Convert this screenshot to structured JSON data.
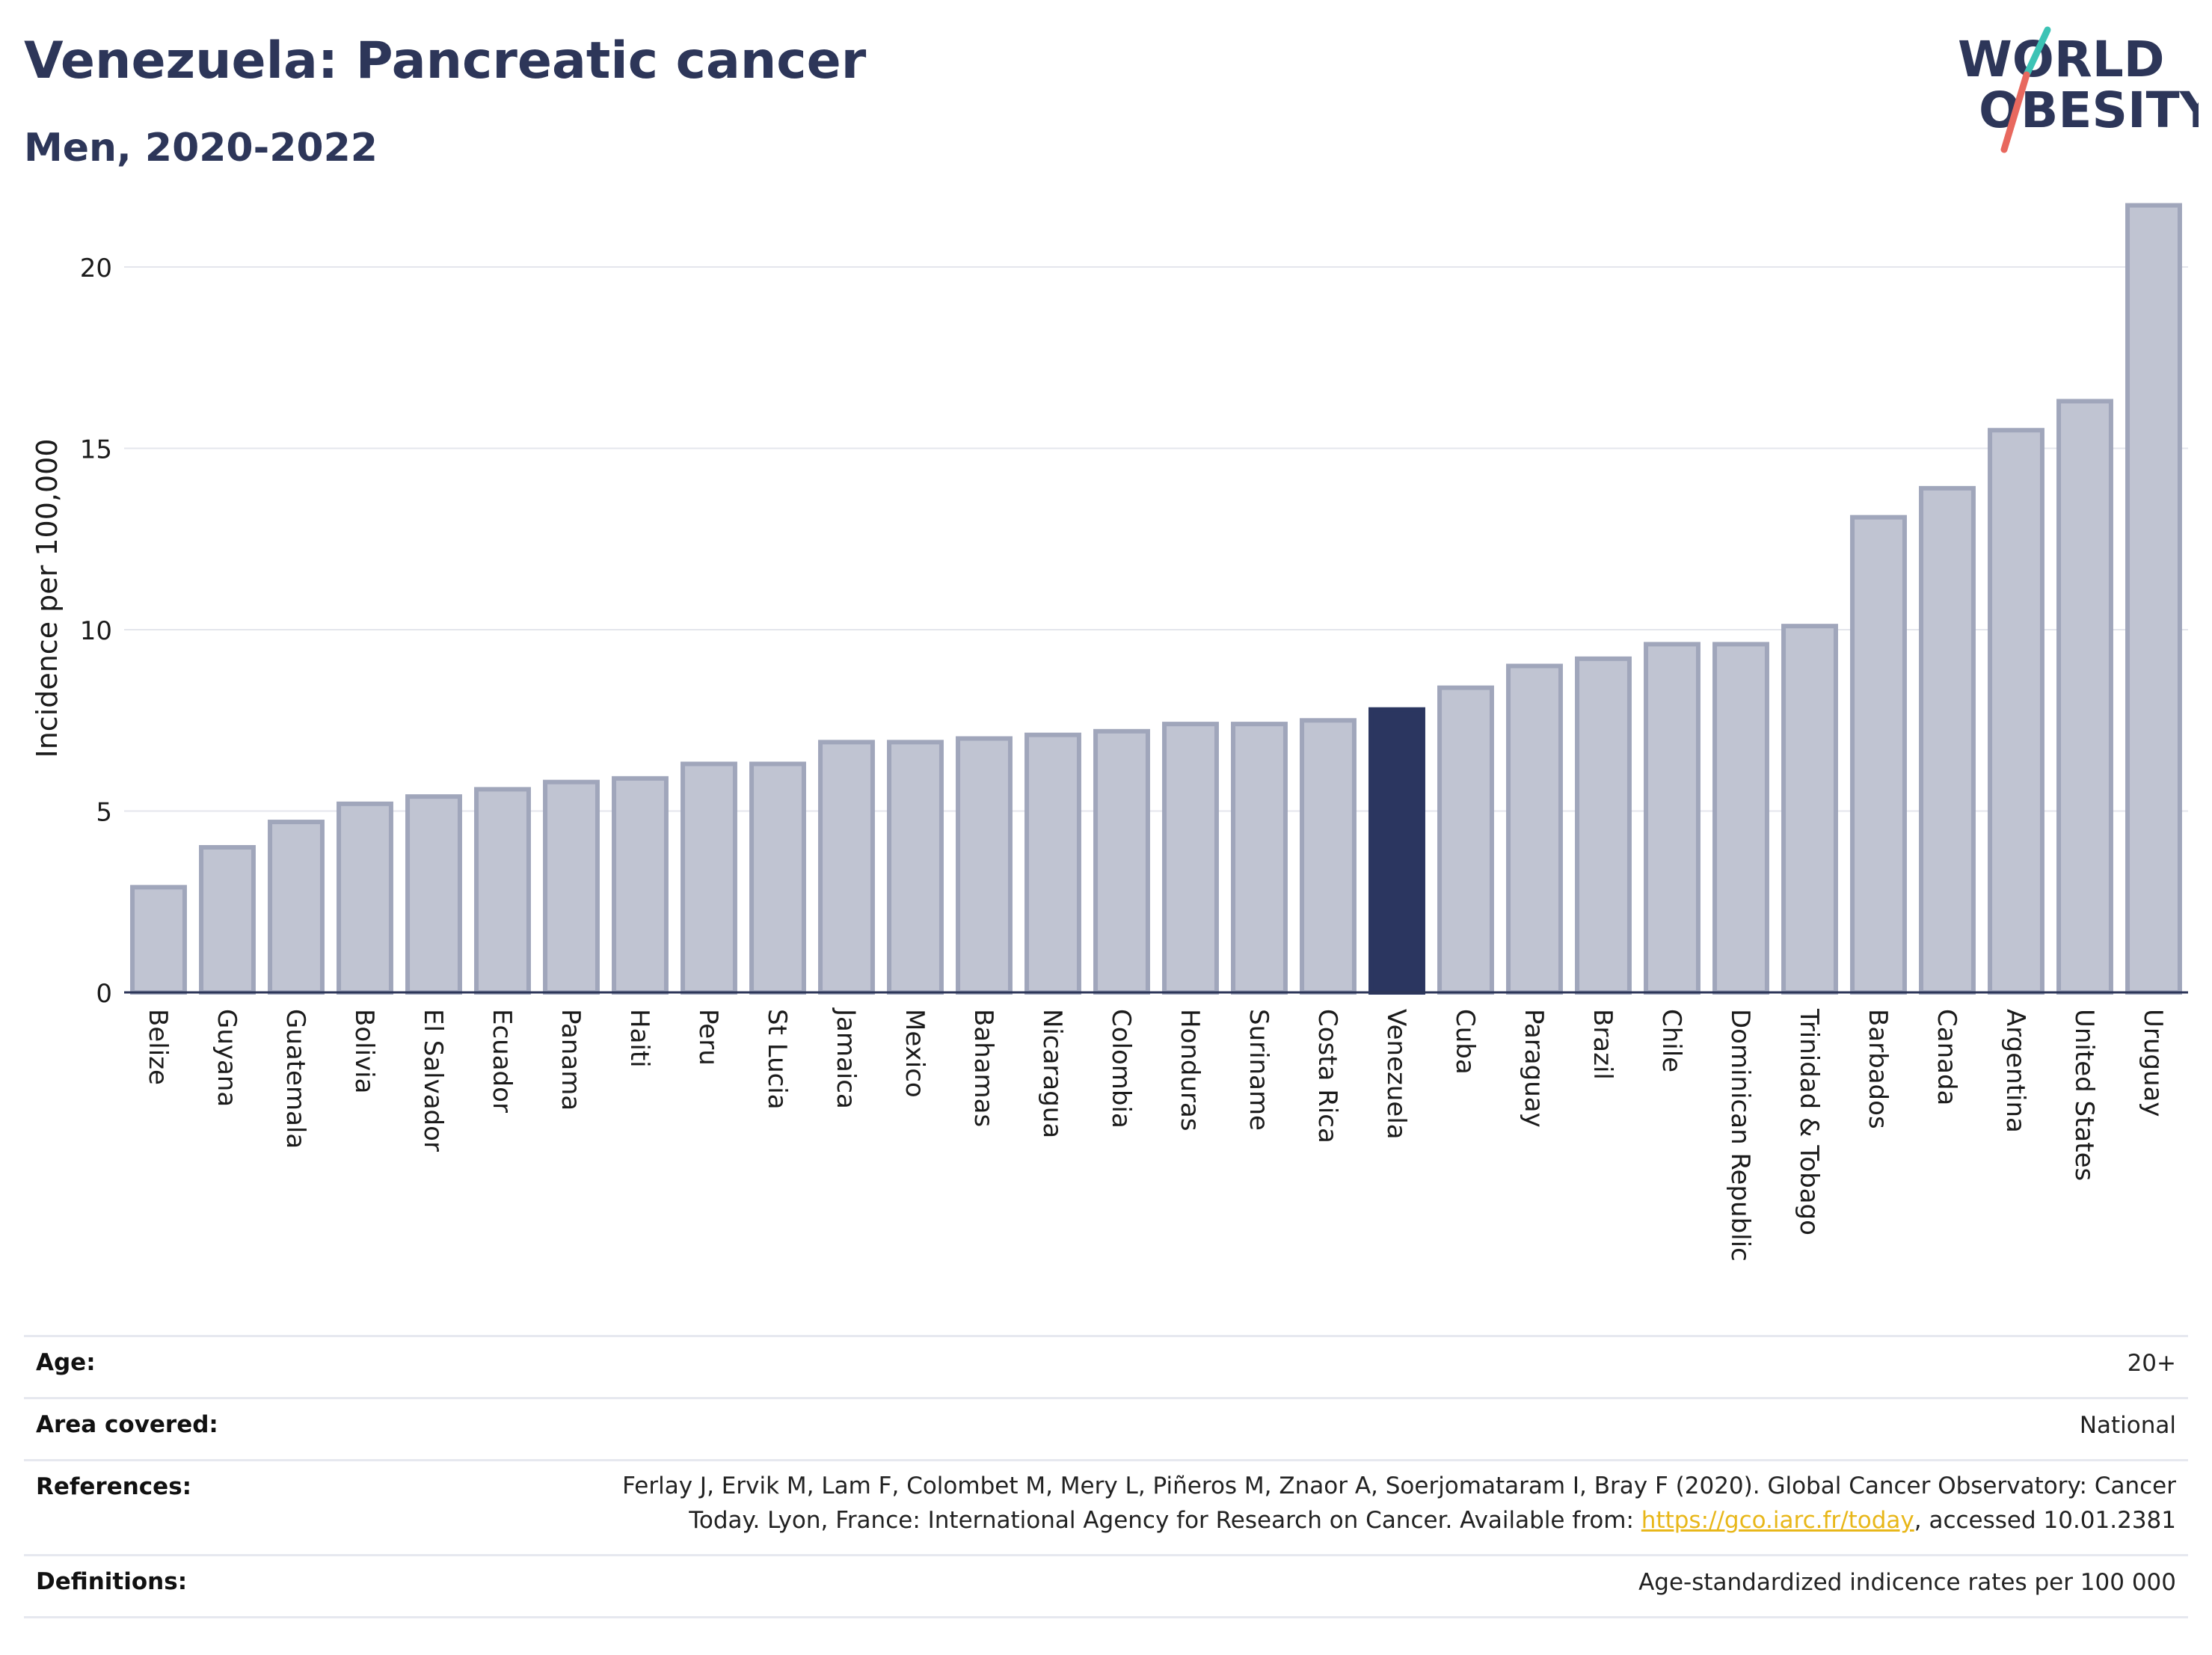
{
  "header": {
    "title": "Venezuela: Pancreatic cancer",
    "subtitle": "Men, 2020-2022"
  },
  "logo": {
    "line1": "WORLD",
    "line2": "OBESITY",
    "slash_colors": [
      "#3cc3b5",
      "#e8685e"
    ]
  },
  "colors": {
    "bar": "#c0c4d2",
    "bar_border": "#a0a6bb",
    "highlight": "#2b3660",
    "text_dark": "#2d3659",
    "link": "#e8b71a"
  },
  "chart_data": {
    "type": "bar",
    "ylabel": "Incidence per 100,000",
    "ylim": [
      0,
      22
    ],
    "yticks": [
      0,
      5,
      10,
      15,
      20
    ],
    "grid": true,
    "highlight": "Venezuela",
    "categories": [
      "Belize",
      "Guyana",
      "Guatemala",
      "Bolivia",
      "El Salvador",
      "Ecuador",
      "Panama",
      "Haiti",
      "Peru",
      "St Lucia",
      "Jamaica",
      "Mexico",
      "Bahamas",
      "Nicaragua",
      "Colombia",
      "Honduras",
      "Suriname",
      "Costa Rica",
      "Venezuela",
      "Cuba",
      "Paraguay",
      "Brazil",
      "Chile",
      "Dominican Republic",
      "Trinidad & Tobago",
      "Barbados",
      "Canada",
      "Argentina",
      "United States",
      "Uruguay"
    ],
    "values": [
      2.9,
      4.0,
      4.7,
      5.2,
      5.4,
      5.6,
      5.8,
      5.9,
      6.3,
      6.3,
      6.9,
      6.9,
      7.0,
      7.1,
      7.2,
      7.4,
      7.4,
      7.5,
      7.8,
      8.4,
      9.0,
      9.2,
      9.6,
      9.6,
      10.1,
      13.1,
      13.9,
      15.5,
      16.3,
      21.7
    ]
  },
  "info": [
    {
      "label": "Age:",
      "value": "20+"
    },
    {
      "label": "Area covered:",
      "value": "National"
    },
    {
      "label": "References:",
      "value_line1": "Ferlay J, Ervik M, Lam F, Colombet M, Mery L, Piñeros M, Znaor A, Soerjomataram I, Bray F (2020). Global Cancer Observatory: Cancer",
      "value_line2_pre": "Today. Lyon, France: International Agency for Research on Cancer. Available from: ",
      "link": "https://gco.iarc.fr/today",
      "value_line2_post": ", accessed 10.01.2381"
    },
    {
      "label": "Definitions:",
      "value": "Age-standardized indicence rates per 100 000"
    }
  ]
}
